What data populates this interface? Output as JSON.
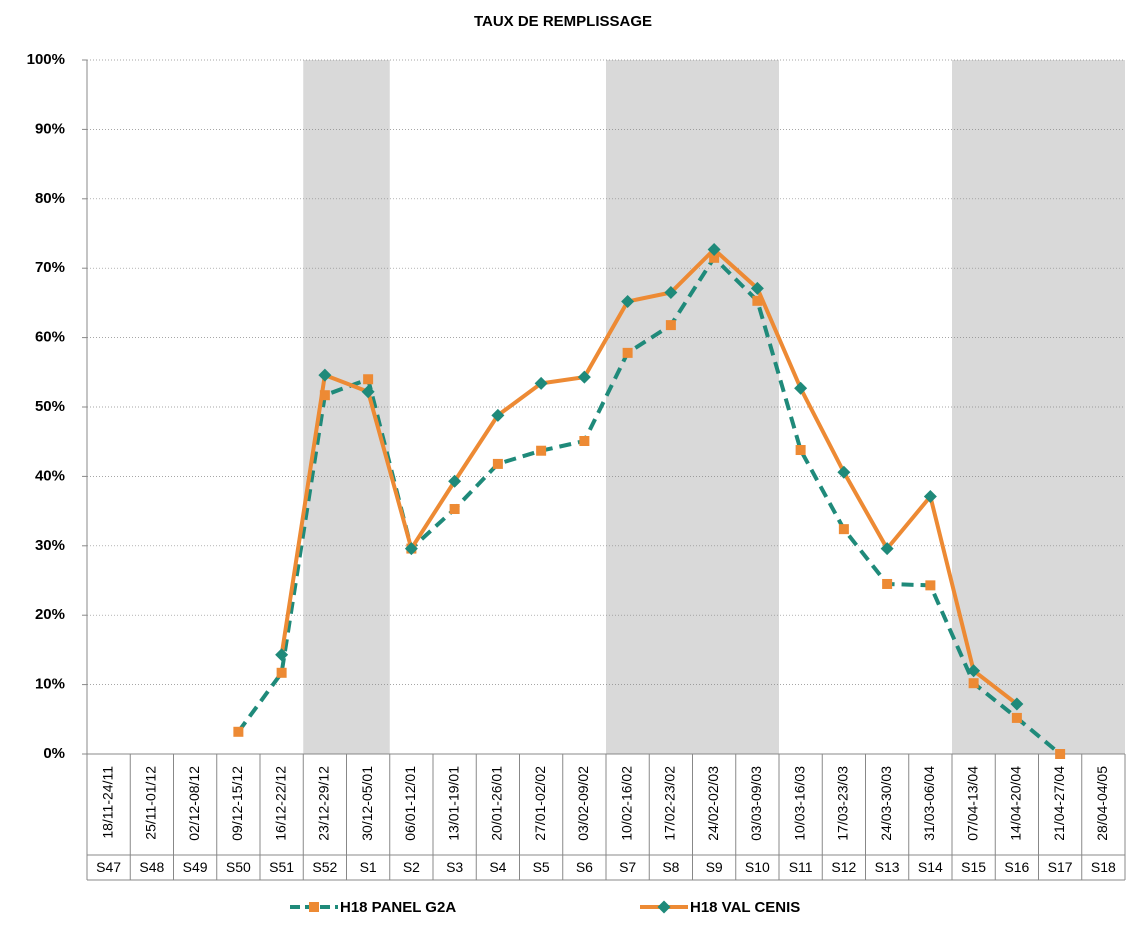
{
  "chart_data": {
    "type": "line",
    "title": "TAUX DE REMPLISSAGE",
    "categories": [
      "18/11-24/11",
      "25/11-01/12",
      "02/12-08/12",
      "09/12-15/12",
      "16/12-22/12",
      "23/12-29/12",
      "30/12-05/01",
      "06/01-12/01",
      "13/01-19/01",
      "20/01-26/01",
      "27/01-02/02",
      "03/02-09/02",
      "10/02-16/02",
      "17/02-23/02",
      "24/02-02/03",
      "03/03-09/03",
      "10/03-16/03",
      "17/03-23/03",
      "24/03-30/03",
      "31/03-06/04",
      "07/04-13/04",
      "14/04-20/04",
      "21/04-27/04",
      "28/04-04/05"
    ],
    "weeks": [
      "S47",
      "S48",
      "S49",
      "S50",
      "S51",
      "S52",
      "S1",
      "S2",
      "S3",
      "S4",
      "S5",
      "S6",
      "S7",
      "S8",
      "S9",
      "S10",
      "S11",
      "S12",
      "S13",
      "S14",
      "S15",
      "S16",
      "S17",
      "S18"
    ],
    "shaded_ranges": [
      [
        5,
        6
      ],
      [
        12,
        15
      ],
      [
        20,
        23
      ]
    ],
    "shade_color": "#d9d9d9",
    "series": [
      {
        "name": "H18 PANEL G2A",
        "color": "#1f8a7a",
        "marker": "square",
        "marker_color": "#ed8a34",
        "dash": true,
        "values": [
          null,
          null,
          null,
          3.2,
          11.7,
          51.7,
          54.0,
          29.6,
          35.3,
          41.8,
          43.7,
          45.1,
          57.8,
          61.8,
          71.5,
          65.3,
          43.8,
          32.4,
          24.5,
          24.3,
          10.2,
          5.2,
          0,
          null
        ]
      },
      {
        "name": "H18 VAL CENIS",
        "color": "#ed8a34",
        "marker": "diamond",
        "marker_color": "#1f8a7a",
        "dash": false,
        "values": [
          null,
          null,
          null,
          null,
          14.3,
          54.6,
          52.2,
          29.6,
          39.3,
          48.8,
          53.4,
          54.3,
          65.2,
          66.5,
          72.7,
          67.1,
          52.7,
          40.6,
          29.6,
          37.1,
          12.0,
          7.2,
          null,
          null
        ]
      }
    ],
    "ylim": [
      0,
      100
    ],
    "yticks": [
      {
        "value": 0,
        "label": "0%"
      },
      {
        "value": 10,
        "label": "10%"
      },
      {
        "value": 20,
        "label": "20%"
      },
      {
        "value": 30,
        "label": "30%"
      },
      {
        "value": 40,
        "label": "40%"
      },
      {
        "value": 50,
        "label": "50%"
      },
      {
        "value": 60,
        "label": "60%"
      },
      {
        "value": 70,
        "label": "70%"
      },
      {
        "value": 80,
        "label": "80%"
      },
      {
        "value": 90,
        "label": "90%"
      },
      {
        "value": 100,
        "label": "100%"
      }
    ],
    "grid": true
  }
}
